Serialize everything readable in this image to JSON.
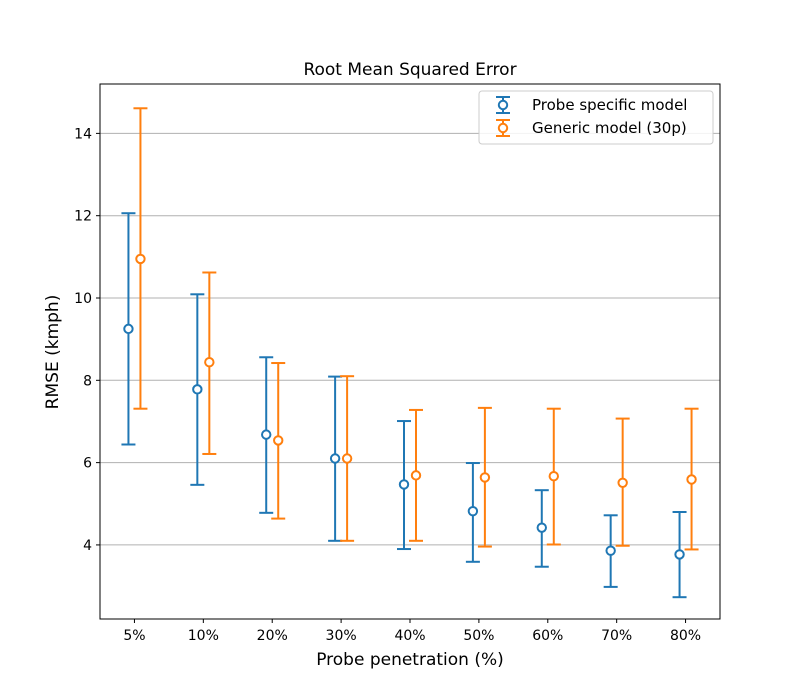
{
  "chart_data": {
    "type": "errorbar",
    "title": "Root Mean Squared Error",
    "xlabel": "Probe penetration (%)",
    "ylabel": "RMSE (kmph)",
    "categories": [
      "5%",
      "10%",
      "20%",
      "30%",
      "40%",
      "50%",
      "60%",
      "70%",
      "80%"
    ],
    "ylim": [
      2.2,
      15.2
    ],
    "yticks": [
      4,
      6,
      8,
      10,
      12,
      14
    ],
    "grid": "horizontal",
    "legend_position": "top-right",
    "series": [
      {
        "name": "Probe specific model",
        "color": "#1f77b4",
        "values": [
          9.25,
          7.78,
          6.68,
          6.1,
          5.47,
          4.82,
          4.42,
          3.86,
          3.77
        ],
        "lower": [
          6.44,
          5.46,
          4.78,
          4.1,
          3.9,
          3.59,
          3.47,
          2.98,
          2.73
        ],
        "upper": [
          12.06,
          10.09,
          8.56,
          8.09,
          7.01,
          5.99,
          5.33,
          4.72,
          4.8
        ]
      },
      {
        "name": "Generic model (30p)",
        "color": "#ff7f0e",
        "values": [
          10.95,
          8.44,
          6.54,
          6.1,
          5.69,
          5.64,
          5.67,
          5.51,
          5.59
        ],
        "lower": [
          7.31,
          6.21,
          4.64,
          4.1,
          4.1,
          3.96,
          4.01,
          3.98,
          3.89
        ],
        "upper": [
          14.61,
          10.62,
          8.42,
          8.1,
          7.28,
          7.33,
          7.31,
          7.07,
          7.31
        ]
      }
    ]
  }
}
